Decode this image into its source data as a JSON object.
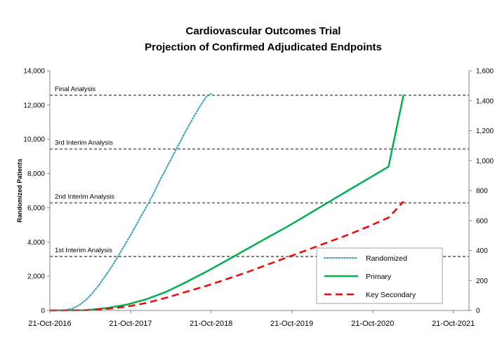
{
  "chart_data": {
    "type": "line",
    "title": "Cardiovascular Outcomes Trial",
    "subtitle": "Projection of Confirmed Adjudicated Endpoints",
    "ylabel": "Randomized Patients",
    "y2label": "",
    "ylim": [
      0,
      14000
    ],
    "y2lim": [
      0,
      1600
    ],
    "yticks": [
      "0",
      "2,000",
      "4,000",
      "6,000",
      "8,000",
      "10,000",
      "12,000",
      "14,000"
    ],
    "y2ticks": [
      "0",
      "200",
      "400",
      "600",
      "800",
      "1,000",
      "1,200",
      "1,400",
      "1,600"
    ],
    "xticks": [
      "21-Oct-2016",
      "21-Oct-2017",
      "21-Oct-2018",
      "21-Oct-2019",
      "21-Oct-2020",
      "21-Oct-2021"
    ],
    "xlim": [
      "2016-10-21",
      "2021-12-31"
    ],
    "grid": false,
    "legend_position": "bottom-right",
    "annotations": [
      {
        "label": "1st Interim Analysis",
        "y2": 360
      },
      {
        "label": "2nd Interim Analysis",
        "y2": 718
      },
      {
        "label": "3rd Interim Analysis",
        "y2": 1078
      },
      {
        "label": "Final Analysis",
        "y2": 1437
      }
    ],
    "series": [
      {
        "name": "Randomized",
        "axis": "left",
        "color": "#2e9bb4",
        "style": "dotted",
        "x": [
          "2016-10-21",
          "2017-01-01",
          "2017-02-01",
          "2017-03-01",
          "2017-04-01",
          "2017-05-01",
          "2017-06-01",
          "2017-07-01",
          "2017-08-01",
          "2017-09-01",
          "2017-10-01",
          "2017-11-01",
          "2017-12-01",
          "2018-01-01",
          "2018-02-01",
          "2018-03-01",
          "2018-04-01",
          "2018-05-01",
          "2018-06-01",
          "2018-07-01",
          "2018-08-01",
          "2018-09-01",
          "2018-10-01",
          "2018-10-21"
        ],
        "y": [
          0,
          20,
          120,
          300,
          600,
          1000,
          1500,
          2050,
          2650,
          3300,
          3950,
          4650,
          5350,
          6050,
          6800,
          7550,
          8300,
          9050,
          9800,
          10550,
          11250,
          11950,
          12500,
          12650
        ]
      },
      {
        "name": "Primary",
        "axis": "right",
        "color": "#00b050",
        "style": "solid",
        "x": [
          "2016-10-21",
          "2017-04-01",
          "2017-07-01",
          "2017-10-01",
          "2018-01-01",
          "2018-04-01",
          "2018-07-01",
          "2018-10-01",
          "2019-01-01",
          "2019-04-01",
          "2019-07-01",
          "2019-10-01",
          "2020-01-01",
          "2020-04-01",
          "2020-07-01",
          "2020-10-01",
          "2021-01-01",
          "2021-03-10"
        ],
        "y": [
          0,
          2,
          15,
          38,
          75,
          125,
          190,
          260,
          335,
          410,
          485,
          560,
          640,
          720,
          800,
          880,
          960,
          1440
        ]
      },
      {
        "name": "Key Secondary",
        "axis": "right",
        "color": "#ff0000",
        "style": "dashed",
        "x": [
          "2016-10-21",
          "2017-04-01",
          "2017-07-01",
          "2017-10-01",
          "2018-01-01",
          "2018-04-01",
          "2018-07-01",
          "2018-10-01",
          "2019-01-01",
          "2019-04-01",
          "2019-07-01",
          "2019-10-01",
          "2020-01-01",
          "2020-04-01",
          "2020-07-01",
          "2020-10-01",
          "2021-01-01",
          "2021-03-10"
        ],
        "y": [
          0,
          2,
          10,
          25,
          50,
          85,
          125,
          165,
          210,
          255,
          305,
          355,
          405,
          455,
          505,
          560,
          620,
          728
        ]
      }
    ]
  }
}
